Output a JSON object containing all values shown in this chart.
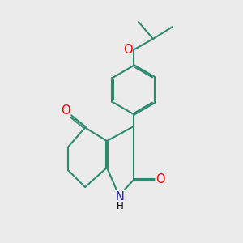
{
  "background_color": "#ebebeb",
  "bond_color": "#2d8a6e",
  "bond_width": 1.5,
  "atom_colors": {
    "O": "#ff0000",
    "N": "#2222cc",
    "C": "#000000"
  },
  "font_size": 9.5
}
